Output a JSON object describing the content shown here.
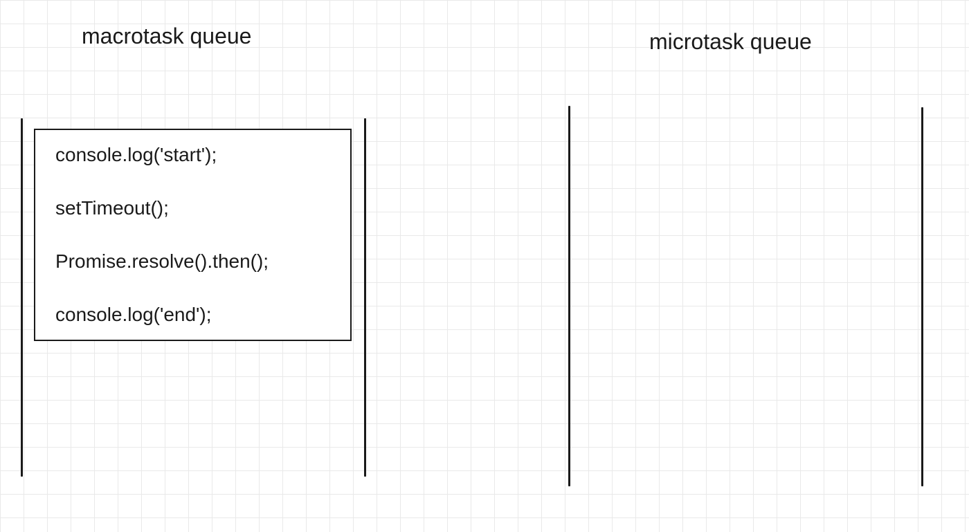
{
  "macrotask_queue": {
    "title": "macrotask queue",
    "task": {
      "lines": [
        "console.log('start');",
        "setTimeout();",
        "Promise.resolve().then();",
        "console.log('end');"
      ]
    }
  },
  "microtask_queue": {
    "title": "microtask queue",
    "items": []
  },
  "colors": {
    "ink": "#1a1a1a",
    "grid": "#e9e9e9",
    "background": "#ffffff"
  }
}
